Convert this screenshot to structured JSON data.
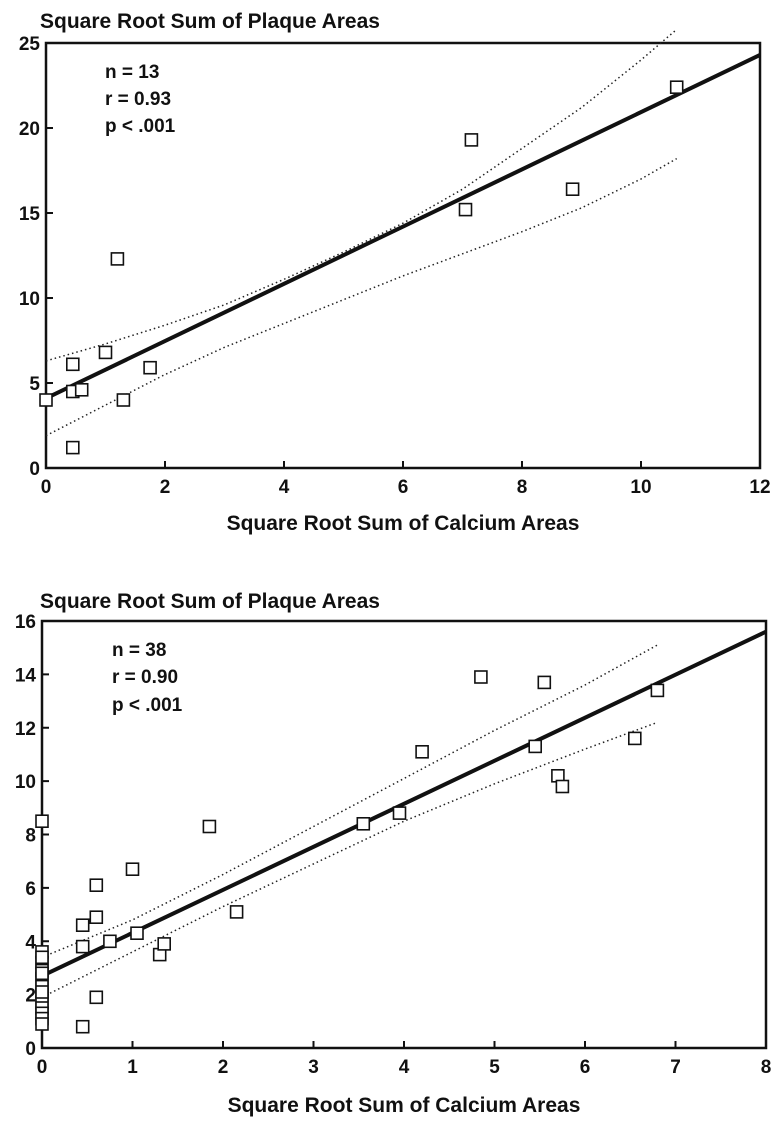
{
  "chart_data": [
    {
      "type": "scatter",
      "ylabel": "Square Root Sum of Plaque Areas",
      "xlabel": "Square Root Sum of Calcium Areas",
      "xlim": [
        0,
        12
      ],
      "ylim": [
        0,
        25
      ],
      "xticks": [
        0,
        2,
        4,
        6,
        8,
        10,
        12
      ],
      "yticks": [
        0,
        5,
        10,
        15,
        20,
        25
      ],
      "grid": false,
      "annotations": [
        "n = 13",
        "r = 0.93",
        "p < .001"
      ],
      "points": {
        "x": [
          0.0,
          0.45,
          0.45,
          0.45,
          0.6,
          1.0,
          1.2,
          1.3,
          1.75,
          7.05,
          7.15,
          8.85,
          10.6
        ],
        "y": [
          4.0,
          6.1,
          4.5,
          1.2,
          4.6,
          6.8,
          12.3,
          4.0,
          5.9,
          15.2,
          19.3,
          16.4,
          22.4
        ]
      },
      "regression_line": {
        "x": [
          0,
          12
        ],
        "y": [
          4.1,
          24.3
        ]
      },
      "confidence_upper": {
        "x": [
          0,
          1,
          2,
          3,
          4,
          5,
          6,
          7,
          8,
          9,
          10,
          10.6
        ],
        "y": [
          6.3,
          7.3,
          8.4,
          9.6,
          11.1,
          12.7,
          14.4,
          16.4,
          18.8,
          21.2,
          24.0,
          25.8
        ]
      },
      "confidence_lower": {
        "x": [
          0,
          1,
          2,
          3,
          4,
          5,
          6,
          7,
          8,
          9,
          10,
          10.6
        ],
        "y": [
          1.9,
          3.7,
          5.5,
          7.1,
          8.5,
          9.9,
          11.3,
          12.6,
          13.9,
          15.3,
          17.0,
          18.2
        ]
      }
    },
    {
      "type": "scatter",
      "ylabel": "Square Root Sum of Plaque Areas",
      "xlabel": "Square Root Sum of Calcium Areas",
      "xlim": [
        0,
        8
      ],
      "ylim": [
        0,
        16
      ],
      "xticks": [
        0,
        1,
        2,
        3,
        4,
        5,
        6,
        7,
        8
      ],
      "yticks": [
        0,
        2,
        4,
        6,
        8,
        10,
        12,
        14,
        16
      ],
      "grid": false,
      "annotations": [
        "n = 38",
        "r = 0.90",
        "p < .001"
      ],
      "points": {
        "x": [
          0,
          0,
          0,
          0,
          0,
          0,
          0,
          0,
          0,
          0,
          0,
          0,
          0.45,
          0.45,
          0.45,
          0.6,
          0.6,
          0.6,
          0.75,
          1.0,
          1.05,
          1.3,
          1.35,
          1.85,
          2.15,
          3.55,
          3.95,
          4.2,
          4.85,
          5.45,
          5.55,
          5.7,
          5.75,
          6.55,
          6.8,
          0,
          0,
          0
        ],
        "y": [
          8.5,
          3.6,
          3.2,
          2.9,
          2.6,
          2.3,
          2.0,
          1.7,
          1.5,
          1.3,
          1.1,
          0.9,
          0.8,
          3.8,
          4.6,
          1.9,
          4.9,
          6.1,
          4.0,
          6.7,
          4.3,
          3.5,
          3.9,
          8.3,
          5.1,
          8.4,
          8.8,
          11.1,
          13.9,
          11.3,
          13.7,
          10.2,
          9.8,
          11.6,
          13.4,
          3.4,
          2.8,
          2.1
        ]
      },
      "regression_line": {
        "x": [
          0,
          8
        ],
        "y": [
          2.7,
          15.6
        ]
      },
      "confidence_upper": {
        "x": [
          0,
          1,
          2,
          3,
          4,
          5,
          6,
          6.8
        ],
        "y": [
          3.4,
          4.8,
          6.5,
          8.3,
          10.1,
          11.9,
          13.6,
          15.1
        ]
      },
      "confidence_lower": {
        "x": [
          0,
          1,
          2,
          3,
          4,
          5,
          6,
          6.8
        ],
        "y": [
          1.9,
          3.6,
          5.3,
          6.9,
          8.5,
          9.9,
          11.2,
          12.2
        ]
      }
    }
  ]
}
